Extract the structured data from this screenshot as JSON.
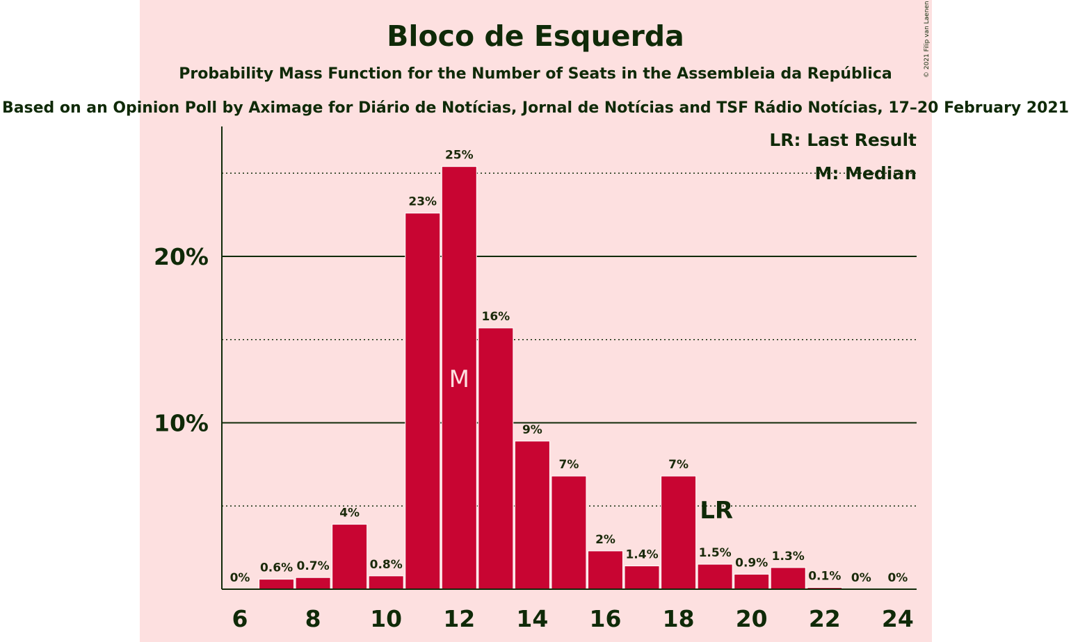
{
  "colors": {
    "background": "#ffffff",
    "panel": "#fde0e0",
    "bar": "#c80532",
    "text": "#0f2a08",
    "median_text": "#fde0e0"
  },
  "copyright": "© 2021 Filip van Laenen",
  "chart_data": {
    "type": "bar",
    "title": "Bloco de Esquerda",
    "subtitle": "Probability Mass Function for the Number of Seats in the Assembleia da República",
    "subtitle2": "Based on an Opinion Poll by Aximage for Diário de Notícias, Jornal de Notícias and TSF Rádio Notícias, 17–20 February 2021",
    "xlabel": "",
    "ylabel": "",
    "x": [
      6,
      7,
      8,
      9,
      10,
      11,
      12,
      13,
      14,
      15,
      16,
      17,
      18,
      19,
      20,
      21,
      22,
      23,
      24
    ],
    "values": [
      0,
      0.6,
      0.7,
      3.9,
      0.8,
      22.6,
      25.4,
      15.7,
      8.9,
      6.8,
      2.3,
      1.4,
      6.8,
      1.5,
      0.9,
      1.3,
      0.1,
      0,
      0
    ],
    "labels": [
      "0%",
      "0.6%",
      "0.7%",
      "4%",
      "0.8%",
      "23%",
      "25%",
      "16%",
      "9%",
      "7%",
      "2%",
      "1.4%",
      "7%",
      "1.5%",
      "0.9%",
      "1.3%",
      "0.1%",
      "0%",
      "0%"
    ],
    "xticks": [
      6,
      8,
      10,
      12,
      14,
      16,
      18,
      20,
      22,
      24
    ],
    "yticks": [
      {
        "value": 10,
        "label": "10%"
      },
      {
        "value": 20,
        "label": "20%"
      }
    ],
    "minor_gridlines": [
      5,
      15,
      25
    ],
    "ylim": [
      0,
      27.8
    ],
    "median": {
      "x": 12,
      "marker": "M"
    },
    "last_result": {
      "x": 19,
      "marker": "LR"
    },
    "legend": {
      "position": "top-right",
      "entries": [
        "LR: Last Result",
        "M: Median"
      ]
    }
  }
}
